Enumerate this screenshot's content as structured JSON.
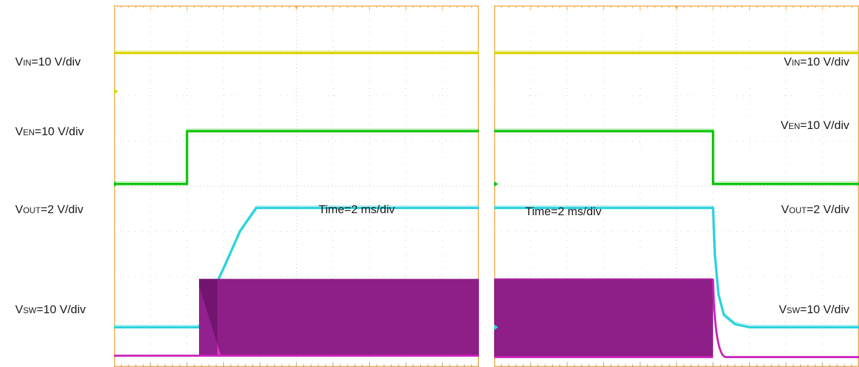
{
  "chart_data": [
    {
      "type": "line",
      "panel": "startup",
      "time_label": "Time=2 ms/div",
      "grid": true,
      "divisions": {
        "x": 10,
        "y": 8
      },
      "series": [
        {
          "name": "VIN=10 V/div",
          "prefix": "V",
          "sub": "IN",
          "scale": "=10 V/div",
          "color": "#d9d600",
          "x": [
            0,
            10
          ],
          "y": [
            6.95,
            6.95
          ]
        },
        {
          "name": "VEN=10 V/div",
          "prefix": "V",
          "sub": "EN",
          "scale": "=10 V/div",
          "color": "#11c50f",
          "x": [
            0,
            2.0,
            2.0,
            10
          ],
          "y": [
            4.05,
            4.05,
            5.22,
            5.22
          ]
        },
        {
          "name": "VOUT=2 V/div",
          "prefix": "V",
          "sub": "OUT",
          "scale": "=2 V/div",
          "color": "#2cd3dd",
          "x": [
            0,
            2.33,
            2.58,
            3.0,
            3.45,
            3.9,
            10
          ],
          "y": [
            0.88,
            0.88,
            1.45,
            2.18,
            3.0,
            3.52,
            3.52
          ]
        },
        {
          "name": "VSW=10 V/div",
          "prefix": "V",
          "sub": "SW",
          "scale": "=10 V/div",
          "color": "#cc22bb",
          "low": 0.25,
          "high": 1.95,
          "x": [
            0,
            2.33,
            10
          ],
          "y": [
            0.25,
            0.25,
            1.95
          ]
        }
      ]
    },
    {
      "type": "line",
      "panel": "shutdown",
      "time_label": "Time=2 ms/div",
      "grid": true,
      "divisions": {
        "x": 10,
        "y": 8
      },
      "series": [
        {
          "name": "VIN=10 V/div",
          "prefix": "V",
          "sub": "IN",
          "scale": "=10 V/div",
          "color": "#d9d600",
          "x": [
            0,
            10
          ],
          "y": [
            6.95,
            6.95
          ]
        },
        {
          "name": "VEN=10 V/div",
          "prefix": "V",
          "sub": "EN",
          "scale": "=10 V/div",
          "color": "#11c50f",
          "x": [
            0,
            6.0,
            6.0,
            10
          ],
          "y": [
            5.22,
            5.22,
            4.05,
            4.05
          ]
        },
        {
          "name": "VOUT=2 V/div",
          "prefix": "V",
          "sub": "OUT",
          "scale": "=2 V/div",
          "color": "#2cd3dd",
          "x": [
            0,
            6.0,
            6.05,
            6.15,
            6.3,
            6.6,
            7.0,
            10
          ],
          "y": [
            3.52,
            3.52,
            2.5,
            1.6,
            1.15,
            0.95,
            0.88,
            0.88
          ]
        },
        {
          "name": "VSW=10 V/div",
          "prefix": "V",
          "sub": "SW",
          "scale": "=10 V/div",
          "color": "#cc22bb",
          "low": 0.22,
          "high": 1.95,
          "x": [
            0,
            6.0,
            10
          ],
          "y": [
            1.95,
            1.95,
            0.22
          ]
        }
      ]
    }
  ]
}
